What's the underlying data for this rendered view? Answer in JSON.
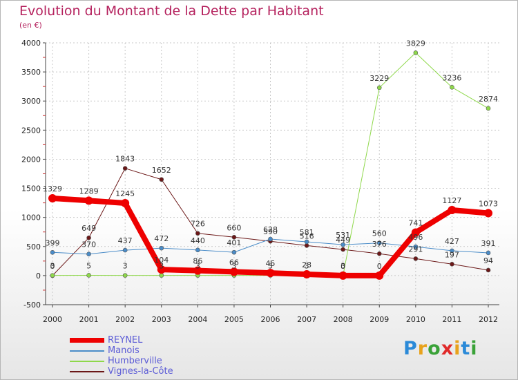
{
  "chart_data": {
    "type": "line",
    "title": "Evolution du Montant de la Dette par Habitant",
    "subtitle": "(en €)",
    "x": [
      "2000",
      "2001",
      "2002",
      "2003",
      "2004",
      "2005",
      "2006",
      "2007",
      "2008",
      "2009",
      "2010",
      "2011",
      "2012"
    ],
    "ylim": [
      -500,
      4000
    ],
    "yticks": [
      "-500",
      "0",
      "500",
      "1000",
      "1500",
      "2000",
      "2500",
      "3000",
      "3500",
      "4000"
    ],
    "ytick_values": [
      -500,
      0,
      500,
      1000,
      1500,
      2000,
      2500,
      3000,
      3500,
      4000
    ],
    "legend_position": "bottom-left",
    "series": [
      {
        "name": "Vignes-la-Côte",
        "color": "#6b1717",
        "values": [
          0,
          649,
          1843,
          1652,
          726,
          660,
          590,
          516,
          449,
          376,
          291,
          197,
          94
        ],
        "labels": [
          "0",
          "649",
          "1843",
          "1652",
          "726",
          "660",
          "590",
          "516",
          "449",
          "376",
          "291",
          "197",
          "94"
        ]
      },
      {
        "name": "Humberville",
        "color": "#8ed84a",
        "values": [
          3,
          5,
          3,
          3,
          3,
          3,
          3,
          3,
          3,
          3229,
          3829,
          3236,
          2874
        ],
        "labels": [
          "3",
          "5",
          "3",
          "3",
          "3",
          "3",
          "3",
          "3",
          "3",
          "3229",
          "3829",
          "3236",
          "2874"
        ]
      },
      {
        "name": "Manois",
        "color": "#4a8cc8",
        "values": [
          399,
          370,
          437,
          472,
          440,
          401,
          628,
          581,
          531,
          560,
          496,
          427,
          391
        ],
        "labels": [
          "399",
          "370",
          "437",
          "472",
          "440",
          "401",
          "628",
          "581",
          "531",
          "560",
          "496",
          "427",
          "391"
        ]
      },
      {
        "name": "REYNEL",
        "color": "#ee0000",
        "values": [
          1329,
          1289,
          1245,
          104,
          86,
          66,
          45,
          23,
          0,
          0,
          741,
          1127,
          1073
        ],
        "labels": [
          "1329",
          "1289",
          "1245",
          "104",
          "86",
          "66",
          "45",
          "23",
          "0",
          "0",
          "741",
          "1127",
          "1073"
        ]
      }
    ]
  },
  "legend": {
    "items": [
      {
        "name": "REYNEL",
        "color": "#ee0000"
      },
      {
        "name": "Manois",
        "color": "#4a8cc8"
      },
      {
        "name": "Humberville",
        "color": "#8ed84a"
      },
      {
        "name": "Vignes-la-Côte",
        "color": "#6b1717"
      }
    ]
  },
  "logo": {
    "letters": [
      "P",
      "r",
      "o",
      "x",
      "i",
      "t",
      "i"
    ],
    "colors": [
      "#2b8ad8",
      "#e8a21c",
      "#3aa238",
      "#e02a2a",
      "#e8a21c",
      "#2b8ad8",
      "#3aa238"
    ]
  }
}
